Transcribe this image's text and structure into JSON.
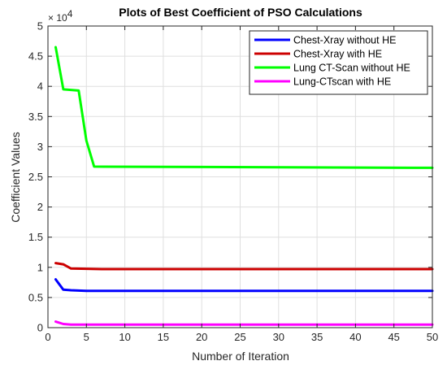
{
  "chart_data": {
    "type": "line",
    "title": "Plots of Best Coefficient of PSO Calculations",
    "xlabel": "Number of Iteration",
    "ylabel": "Coefficient Values",
    "xlim": [
      0,
      50
    ],
    "ylim": [
      0,
      50000
    ],
    "x_ticks": [
      0,
      5,
      10,
      15,
      20,
      25,
      30,
      35,
      40,
      45,
      50
    ],
    "y_ticks": [
      0,
      5000,
      10000,
      15000,
      20000,
      25000,
      30000,
      35000,
      40000,
      45000,
      50000
    ],
    "y_tick_labels": [
      "0",
      "0.5",
      "1",
      "1.5",
      "2",
      "2.5",
      "3",
      "3.5",
      "4",
      "4.5",
      "5"
    ],
    "y_exponent_label": "× 10",
    "y_exponent_power": "4",
    "grid": true,
    "legend_position": "top-right",
    "series": [
      {
        "name": "Chest-Xray without HE",
        "color": "#0000ff",
        "x": [
          1,
          2,
          3,
          5,
          50
        ],
        "y": [
          8000,
          6300,
          6200,
          6100,
          6100
        ]
      },
      {
        "name": "Chest-Xray with HE",
        "color": "#cc0000",
        "x": [
          1,
          2,
          3,
          7,
          50
        ],
        "y": [
          10700,
          10500,
          9800,
          9700,
          9700
        ]
      },
      {
        "name": "Lung CT-Scan without HE",
        "color": "#00ff00",
        "x": [
          1,
          2,
          4,
          5,
          6,
          50
        ],
        "y": [
          46500,
          39500,
          39300,
          31000,
          26700,
          26500
        ]
      },
      {
        "name": "Lung-CTscan with HE",
        "color": "#ff00ff",
        "x": [
          1,
          2,
          3,
          50
        ],
        "y": [
          1000,
          600,
          500,
          500
        ]
      }
    ]
  }
}
